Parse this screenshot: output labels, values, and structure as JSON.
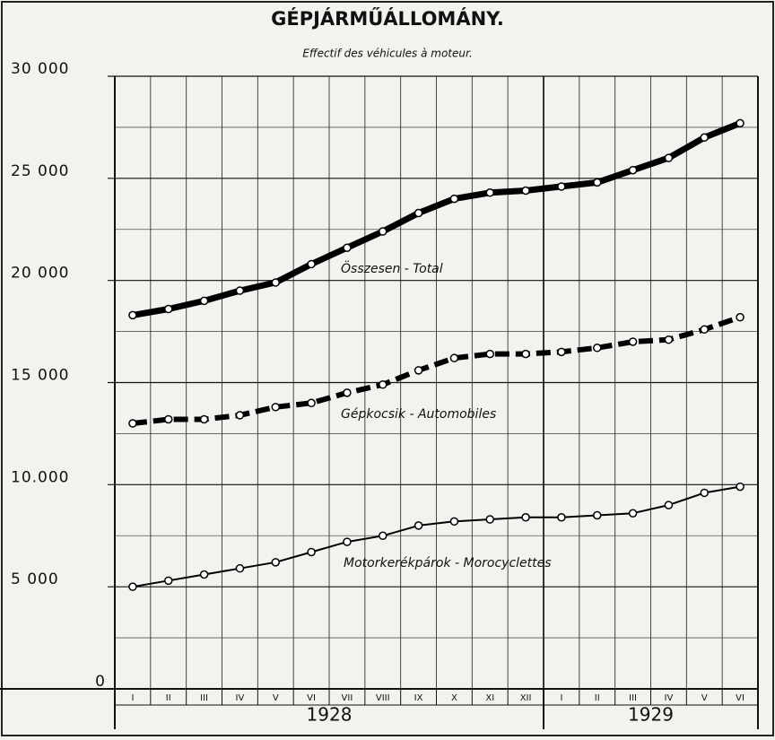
{
  "chart_data": {
    "type": "line",
    "title": "GÉPJÁRMŰÁLLOMÁNY.",
    "subtitle": "Effectif des véhicules à moteur.",
    "categories": [
      "I",
      "II",
      "III",
      "IV",
      "V",
      "VI",
      "VII",
      "VIII",
      "IX",
      "X",
      "XI",
      "XII",
      "I",
      "II",
      "III",
      "IV",
      "V",
      "VI"
    ],
    "years": [
      "1928",
      "1929"
    ],
    "series": [
      {
        "name": "Összesen - Total",
        "color": "#000000",
        "style": "thick",
        "values": [
          18300,
          18600,
          19000,
          19500,
          19900,
          20800,
          21600,
          22400,
          23300,
          24000,
          24300,
          24400,
          24600,
          24800,
          25400,
          26000,
          27000,
          27700
        ]
      },
      {
        "name": "Gépkocsik - Automobiles",
        "color": "#000000",
        "style": "dashed",
        "values": [
          13000,
          13200,
          13200,
          13400,
          13800,
          14000,
          14500,
          14900,
          15600,
          16200,
          16400,
          16400,
          16500,
          16700,
          17000,
          17100,
          17600,
          18200
        ]
      },
      {
        "name": "Motorkerékpárok - Morocyclettes",
        "color": "#000000",
        "style": "thin",
        "values": [
          5000,
          5300,
          5600,
          5900,
          6200,
          6700,
          7200,
          7500,
          8000,
          8200,
          8300,
          8400,
          8400,
          8500,
          8600,
          9000,
          9600,
          9900
        ]
      }
    ],
    "ylim": [
      0,
      30000
    ],
    "yticks": [
      0,
      {
        "value": 5000,
        "label": "5 000"
      },
      {
        "value": 10000,
        "label": "10.000"
      },
      {
        "value": 15000,
        "label": "15 000"
      },
      {
        "value": 20000,
        "label": "20 000"
      },
      {
        "value": 25000,
        "label": "25 000"
      },
      {
        "value": 30000,
        "label": "30 000"
      }
    ],
    "yticks_minor": [
      2500,
      7500,
      12500,
      17500,
      22500,
      27500
    ],
    "grid": true
  }
}
